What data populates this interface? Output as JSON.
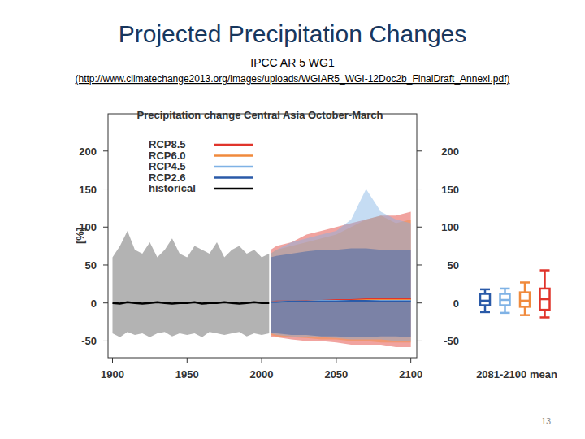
{
  "slide": {
    "title": "Projected Precipitation Changes",
    "subtitle": "IPCC AR 5 WG1",
    "source": "(http://www.climatechange2013.org/images/uploads/WGIAR5_WGI-12Doc2b_FinalDraft_AnnexI.pdf)",
    "page_number": "13"
  },
  "chart_data": {
    "type": "line",
    "title": "Precipitation change Central Asia October-March",
    "y_label": "[%]",
    "box_label": "2081-2100 mean",
    "xlim": [
      1897,
      2104
    ],
    "ylim": [
      -72,
      249
    ],
    "xticks": [
      1900,
      1950,
      2000,
      2050,
      2100
    ],
    "yticks": [
      -50,
      0,
      50,
      100,
      150,
      200
    ],
    "grid": false,
    "legend": "upper left",
    "series": [
      {
        "name": "RCP8.5",
        "color": "#e0342b",
        "x": [
          2006,
          2010,
          2020,
          2030,
          2040,
          2050,
          2060,
          2070,
          2080,
          2090,
          2100
        ],
        "values": [
          1,
          2,
          2,
          3,
          3,
          4,
          4,
          5,
          5,
          6,
          6
        ],
        "low": [
          -45,
          -45,
          -48,
          -50,
          -50,
          -52,
          -55,
          -55,
          -55,
          -58,
          -58
        ],
        "high": [
          70,
          75,
          80,
          90,
          95,
          100,
          105,
          110,
          115,
          115,
          120
        ],
        "box": {
          "min": -19,
          "q1": -9,
          "median": 5,
          "q3": 19,
          "max": 43
        }
      },
      {
        "name": "RCP6.0",
        "color": "#f08a3c",
        "x": [
          2006,
          2010,
          2020,
          2030,
          2040,
          2050,
          2060,
          2070,
          2080,
          2090,
          2100
        ],
        "values": [
          1,
          1,
          2,
          2,
          3,
          3,
          3,
          4,
          4,
          4,
          4
        ],
        "low": [
          -42,
          -44,
          -45,
          -46,
          -48,
          -48,
          -50,
          -50,
          -52,
          -52,
          -52
        ],
        "high": [
          65,
          70,
          75,
          80,
          85,
          90,
          100,
          110,
          115,
          105,
          110
        ],
        "box": {
          "min": -16,
          "q1": -5,
          "median": 3,
          "q3": 14,
          "max": 27
        }
      },
      {
        "name": "RCP4.5",
        "color": "#7fb2e5",
        "x": [
          2006,
          2010,
          2020,
          2030,
          2040,
          2050,
          2060,
          2070,
          2080,
          2090,
          2100
        ],
        "values": [
          1,
          1,
          2,
          2,
          3,
          3,
          3,
          3,
          3,
          3,
          3
        ],
        "low": [
          -40,
          -42,
          -44,
          -45,
          -45,
          -46,
          -48,
          -48,
          -48,
          -50,
          -50
        ],
        "high": [
          65,
          70,
          80,
          85,
          90,
          95,
          110,
          150,
          120,
          110,
          105
        ],
        "box": {
          "min": -13,
          "q1": -3,
          "median": 4,
          "q3": 12,
          "max": 19
        }
      },
      {
        "name": "RCP2.6",
        "color": "#2a5aa8",
        "x": [
          2006,
          2010,
          2020,
          2030,
          2040,
          2050,
          2060,
          2070,
          2080,
          2090,
          2100
        ],
        "values": [
          1,
          1,
          2,
          2,
          2,
          2,
          3,
          3,
          2,
          2,
          2
        ],
        "low": [
          -40,
          -40,
          -42,
          -42,
          -44,
          -44,
          -45,
          -45,
          -44,
          -44,
          -45
        ],
        "high": [
          60,
          62,
          65,
          68,
          70,
          70,
          72,
          72,
          70,
          70,
          70
        ],
        "box": {
          "min": -12,
          "q1": -3,
          "median": 3,
          "q3": 12,
          "max": 18
        }
      },
      {
        "name": "historical",
        "color": "#000000",
        "x": [
          1900,
          1905,
          1910,
          1915,
          1920,
          1925,
          1930,
          1935,
          1940,
          1945,
          1950,
          1955,
          1960,
          1965,
          1970,
          1975,
          1980,
          1985,
          1990,
          1995,
          2000,
          2005
        ],
        "values": [
          0,
          -1,
          1,
          0,
          -1,
          0,
          1,
          0,
          -1,
          0,
          0,
          1,
          -1,
          0,
          0,
          1,
          0,
          -1,
          0,
          1,
          0,
          0
        ],
        "low": [
          -40,
          -45,
          -38,
          -42,
          -40,
          -45,
          -40,
          -38,
          -44,
          -40,
          -42,
          -40,
          -45,
          -38,
          -40,
          -42,
          -40,
          -38,
          -44,
          -40,
          -42,
          -40
        ],
        "high": [
          60,
          75,
          95,
          70,
          65,
          80,
          60,
          70,
          85,
          65,
          60,
          75,
          70,
          65,
          80,
          60,
          70,
          75,
          65,
          70,
          60,
          65
        ]
      }
    ]
  }
}
